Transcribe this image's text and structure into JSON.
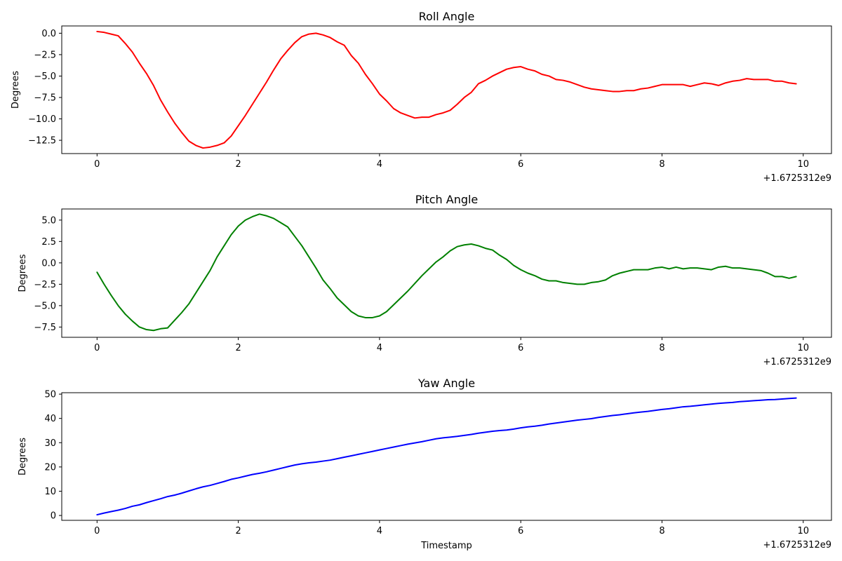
{
  "chart_data": [
    {
      "type": "line",
      "title": "Roll Angle",
      "xlabel": "",
      "ylabel": "Degrees",
      "x_offset_label": "+1.6725312e9",
      "xlim": [
        -0.5,
        10.4
      ],
      "ylim": [
        -14.05,
        0.85
      ],
      "xticks": [
        0,
        2,
        4,
        6,
        8,
        10
      ],
      "xtick_labels": [
        "0",
        "2",
        "4",
        "6",
        "8",
        "10"
      ],
      "yticks": [
        0,
        -2.5,
        -5,
        -7.5,
        -10,
        -12.5
      ],
      "ytick_labels": [
        "0.0",
        "−2.5",
        "−5.0",
        "−7.5",
        "−10.0",
        "−12.5"
      ],
      "series": [
        {
          "color": "#ff0000",
          "x": [
            0,
            0.1,
            0.2,
            0.3,
            0.4,
            0.5,
            0.6,
            0.7,
            0.8,
            0.9,
            1.0,
            1.1,
            1.2,
            1.3,
            1.4,
            1.5,
            1.6,
            1.7,
            1.8,
            1.9,
            2.0,
            2.1,
            2.2,
            2.3,
            2.4,
            2.5,
            2.6,
            2.7,
            2.8,
            2.9,
            3.0,
            3.1,
            3.2,
            3.3,
            3.4,
            3.5,
            3.6,
            3.7,
            3.8,
            3.9,
            4.0,
            4.1,
            4.2,
            4.3,
            4.4,
            4.5,
            4.6,
            4.7,
            4.8,
            4.9,
            5.0,
            5.1,
            5.2,
            5.3,
            5.4,
            5.5,
            5.6,
            5.7,
            5.8,
            5.9,
            6.0,
            6.1,
            6.2,
            6.3,
            6.4,
            6.5,
            6.6,
            6.7,
            6.8,
            6.9,
            7.0,
            7.1,
            7.2,
            7.3,
            7.4,
            7.5,
            7.6,
            7.7,
            7.8,
            7.9,
            8.0,
            8.1,
            8.2,
            8.3,
            8.4,
            8.5,
            8.6,
            8.7,
            8.8,
            8.9,
            9.0,
            9.1,
            9.2,
            9.3,
            9.4,
            9.5,
            9.6,
            9.7,
            9.8,
            9.9
          ],
          "y": [
            0.2,
            0.1,
            -0.1,
            -0.3,
            -1.2,
            -2.2,
            -3.5,
            -4.7,
            -6.1,
            -7.8,
            -9.2,
            -10.5,
            -11.6,
            -12.6,
            -13.1,
            -13.4,
            -13.3,
            -13.1,
            -12.8,
            -12.0,
            -10.8,
            -9.6,
            -8.3,
            -7.0,
            -5.7,
            -4.3,
            -3.0,
            -2.0,
            -1.1,
            -0.4,
            -0.1,
            0.0,
            -0.2,
            -0.5,
            -1.0,
            -1.4,
            -2.6,
            -3.5,
            -4.8,
            -5.9,
            -7.1,
            -7.9,
            -8.8,
            -9.3,
            -9.6,
            -9.9,
            -9.8,
            -9.8,
            -9.5,
            -9.3,
            -9.0,
            -8.3,
            -7.5,
            -6.9,
            -5.9,
            -5.5,
            -5.0,
            -4.6,
            -4.2,
            -4.0,
            -3.9,
            -4.2,
            -4.4,
            -4.8,
            -5.0,
            -5.4,
            -5.5,
            -5.7,
            -6.0,
            -6.3,
            -6.5,
            -6.6,
            -6.7,
            -6.8,
            -6.8,
            -6.7,
            -6.7,
            -6.5,
            -6.4,
            -6.2,
            -6.0,
            -6.0,
            -6.0,
            -6.0,
            -6.2,
            -6.0,
            -5.8,
            -5.9,
            -6.1,
            -5.8,
            -5.6,
            -5.5,
            -5.3,
            -5.4,
            -5.4,
            -5.4,
            -5.6,
            -5.6,
            -5.8,
            -5.9
          ]
        }
      ]
    },
    {
      "type": "line",
      "title": "Pitch Angle",
      "xlabel": "",
      "ylabel": "Degrees",
      "x_offset_label": "+1.6725312e9",
      "xlim": [
        -0.5,
        10.4
      ],
      "ylim": [
        -8.7,
        6.3
      ],
      "xticks": [
        0,
        2,
        4,
        6,
        8,
        10
      ],
      "xtick_labels": [
        "0",
        "2",
        "4",
        "6",
        "8",
        "10"
      ],
      "yticks": [
        5,
        2.5,
        0,
        -2.5,
        -5,
        -7.5
      ],
      "ytick_labels": [
        "5.0",
        "2.5",
        "0.0",
        "−2.5",
        "−5.0",
        "−7.5"
      ],
      "series": [
        {
          "color": "#008000",
          "x": [
            0,
            0.1,
            0.2,
            0.3,
            0.4,
            0.5,
            0.6,
            0.7,
            0.8,
            0.9,
            1.0,
            1.1,
            1.2,
            1.3,
            1.4,
            1.5,
            1.6,
            1.7,
            1.8,
            1.9,
            2.0,
            2.1,
            2.2,
            2.3,
            2.4,
            2.5,
            2.6,
            2.7,
            2.8,
            2.9,
            3.0,
            3.1,
            3.2,
            3.3,
            3.4,
            3.5,
            3.6,
            3.7,
            3.8,
            3.9,
            4.0,
            4.1,
            4.2,
            4.3,
            4.4,
            4.5,
            4.6,
            4.7,
            4.8,
            4.9,
            5.0,
            5.1,
            5.2,
            5.3,
            5.4,
            5.5,
            5.6,
            5.7,
            5.8,
            5.9,
            6.0,
            6.1,
            6.2,
            6.3,
            6.4,
            6.5,
            6.6,
            6.7,
            6.8,
            6.9,
            7.0,
            7.1,
            7.2,
            7.3,
            7.4,
            7.5,
            7.6,
            7.7,
            7.8,
            7.9,
            8.0,
            8.1,
            8.2,
            8.3,
            8.4,
            8.5,
            8.6,
            8.7,
            8.8,
            8.9,
            9.0,
            9.1,
            9.2,
            9.3,
            9.4,
            9.5,
            9.6,
            9.7,
            9.8,
            9.9
          ],
          "y": [
            -1.1,
            -2.5,
            -3.8,
            -5.0,
            -6.0,
            -6.8,
            -7.5,
            -7.8,
            -7.9,
            -7.7,
            -7.6,
            -6.7,
            -5.8,
            -4.8,
            -3.5,
            -2.2,
            -0.9,
            0.7,
            2.0,
            3.3,
            4.3,
            5.0,
            5.4,
            5.7,
            5.5,
            5.2,
            4.7,
            4.2,
            3.1,
            2.0,
            0.7,
            -0.6,
            -2.0,
            -3.0,
            -4.1,
            -4.9,
            -5.7,
            -6.2,
            -6.4,
            -6.4,
            -6.2,
            -5.7,
            -4.9,
            -4.1,
            -3.3,
            -2.4,
            -1.5,
            -0.7,
            0.1,
            0.7,
            1.4,
            1.9,
            2.1,
            2.2,
            2.0,
            1.7,
            1.5,
            0.9,
            0.4,
            -0.3,
            -0.8,
            -1.2,
            -1.5,
            -1.9,
            -2.1,
            -2.1,
            -2.3,
            -2.4,
            -2.5,
            -2.5,
            -2.3,
            -2.2,
            -2.0,
            -1.5,
            -1.2,
            -1.0,
            -0.8,
            -0.8,
            -0.8,
            -0.6,
            -0.5,
            -0.7,
            -0.5,
            -0.7,
            -0.6,
            -0.6,
            -0.7,
            -0.8,
            -0.5,
            -0.4,
            -0.6,
            -0.6,
            -0.7,
            -0.8,
            -0.9,
            -1.2,
            -1.6,
            -1.6,
            -1.8,
            -1.6
          ]
        }
      ]
    },
    {
      "type": "line",
      "title": "Yaw Angle",
      "xlabel": "Timestamp",
      "ylabel": "Degrees",
      "x_offset_label": "+1.6725312e9",
      "xlim": [
        -0.5,
        10.4
      ],
      "ylim": [
        -2.0,
        50.6
      ],
      "xticks": [
        0,
        2,
        4,
        6,
        8,
        10
      ],
      "xtick_labels": [
        "0",
        "2",
        "4",
        "6",
        "8",
        "10"
      ],
      "yticks": [
        50,
        40,
        30,
        20,
        10,
        0
      ],
      "ytick_labels": [
        "50",
        "40",
        "30",
        "20",
        "10",
        "0"
      ],
      "series": [
        {
          "color": "#0000ff",
          "x": [
            0,
            0.1,
            0.2,
            0.3,
            0.4,
            0.5,
            0.6,
            0.7,
            0.8,
            0.9,
            1.0,
            1.1,
            1.2,
            1.3,
            1.4,
            1.5,
            1.6,
            1.7,
            1.8,
            1.9,
            2.0,
            2.1,
            2.2,
            2.3,
            2.4,
            2.5,
            2.6,
            2.7,
            2.8,
            2.9,
            3.0,
            3.1,
            3.2,
            3.3,
            3.4,
            3.5,
            3.6,
            3.7,
            3.8,
            3.9,
            4.0,
            4.1,
            4.2,
            4.3,
            4.4,
            4.5,
            4.6,
            4.7,
            4.8,
            4.9,
            5.0,
            5.1,
            5.2,
            5.3,
            5.4,
            5.5,
            5.6,
            5.7,
            5.8,
            5.9,
            6.0,
            6.1,
            6.2,
            6.3,
            6.4,
            6.5,
            6.6,
            6.7,
            6.8,
            6.9,
            7.0,
            7.1,
            7.2,
            7.3,
            7.4,
            7.5,
            7.6,
            7.7,
            7.8,
            7.9,
            8.0,
            8.1,
            8.2,
            8.3,
            8.4,
            8.5,
            8.6,
            8.7,
            8.8,
            8.9,
            9.0,
            9.1,
            9.2,
            9.3,
            9.4,
            9.5,
            9.6,
            9.7,
            9.8,
            9.9
          ],
          "y": [
            0.3,
            1.0,
            1.6,
            2.2,
            2.9,
            3.8,
            4.4,
            5.3,
            6.1,
            6.9,
            7.8,
            8.4,
            9.2,
            10.1,
            11.0,
            11.8,
            12.4,
            13.2,
            14.0,
            14.9,
            15.5,
            16.2,
            16.9,
            17.4,
            18.0,
            18.7,
            19.4,
            20.1,
            20.8,
            21.3,
            21.7,
            22.0,
            22.4,
            22.8,
            23.4,
            24.0,
            24.6,
            25.2,
            25.8,
            26.4,
            27.0,
            27.6,
            28.2,
            28.8,
            29.4,
            29.9,
            30.4,
            31.0,
            31.6,
            32.0,
            32.3,
            32.6,
            33.0,
            33.4,
            33.9,
            34.3,
            34.7,
            35.0,
            35.2,
            35.6,
            36.1,
            36.5,
            36.8,
            37.2,
            37.7,
            38.1,
            38.5,
            38.9,
            39.3,
            39.6,
            39.9,
            40.4,
            40.8,
            41.2,
            41.5,
            41.9,
            42.3,
            42.6,
            42.9,
            43.3,
            43.7,
            44.0,
            44.4,
            44.8,
            45.0,
            45.3,
            45.6,
            45.9,
            46.2,
            46.4,
            46.6,
            46.9,
            47.1,
            47.3,
            47.5,
            47.7,
            47.8,
            48.0,
            48.2,
            48.4
          ]
        }
      ]
    }
  ]
}
